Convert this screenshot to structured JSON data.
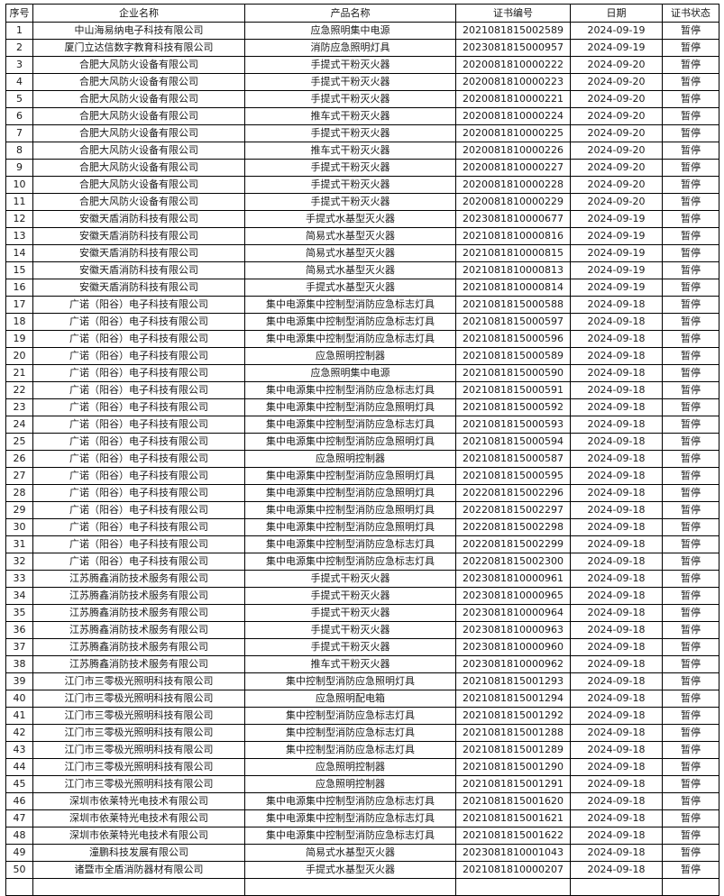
{
  "table": {
    "headers": [
      "序号",
      "企业名称",
      "产品名称",
      "证书编号",
      "日期",
      "证书状态"
    ],
    "rows": [
      [
        "1",
        "中山海易纳电子科技有限公司",
        "应急照明集中电源",
        "2021081815002589",
        "2024-09-19",
        "暂停"
      ],
      [
        "2",
        "厦门立达信数字教育科技有限公司",
        "消防应急照明灯具",
        "2023081815000957",
        "2024-09-19",
        "暂停"
      ],
      [
        "3",
        "合肥大风防火设备有限公司",
        "手提式干粉灭火器",
        "2020081810000222",
        "2024-09-20",
        "暂停"
      ],
      [
        "4",
        "合肥大风防火设备有限公司",
        "手提式干粉灭火器",
        "2020081810000223",
        "2024-09-20",
        "暂停"
      ],
      [
        "5",
        "合肥大风防火设备有限公司",
        "手提式干粉灭火器",
        "2020081810000221",
        "2024-09-20",
        "暂停"
      ],
      [
        "6",
        "合肥大风防火设备有限公司",
        "推车式干粉灭火器",
        "2020081810000224",
        "2024-09-20",
        "暂停"
      ],
      [
        "7",
        "合肥大风防火设备有限公司",
        "手提式干粉灭火器",
        "2020081810000225",
        "2024-09-20",
        "暂停"
      ],
      [
        "8",
        "合肥大风防火设备有限公司",
        "推车式干粉灭火器",
        "2020081810000226",
        "2024-09-20",
        "暂停"
      ],
      [
        "9",
        "合肥大风防火设备有限公司",
        "手提式干粉灭火器",
        "2020081810000227",
        "2024-09-20",
        "暂停"
      ],
      [
        "10",
        "合肥大风防火设备有限公司",
        "手提式干粉灭火器",
        "2020081810000228",
        "2024-09-20",
        "暂停"
      ],
      [
        "11",
        "合肥大风防火设备有限公司",
        "手提式干粉灭火器",
        "2020081810000229",
        "2024-09-20",
        "暂停"
      ],
      [
        "12",
        "安徽天盾消防科技有限公司",
        "手提式水基型灭火器",
        "2023081810000677",
        "2024-09-19",
        "暂停"
      ],
      [
        "13",
        "安徽天盾消防科技有限公司",
        "简易式水基型灭火器",
        "2021081810000816",
        "2024-09-19",
        "暂停"
      ],
      [
        "14",
        "安徽天盾消防科技有限公司",
        "简易式水基型灭火器",
        "2021081810000815",
        "2024-09-19",
        "暂停"
      ],
      [
        "15",
        "安徽天盾消防科技有限公司",
        "简易式水基型灭火器",
        "2021081810000813",
        "2024-09-19",
        "暂停"
      ],
      [
        "16",
        "安徽天盾消防科技有限公司",
        "手提式水基型灭火器",
        "2021081810000814",
        "2024-09-19",
        "暂停"
      ],
      [
        "17",
        "广诺（阳谷）电子科技有限公司",
        "集中电源集中控制型消防应急标志灯具",
        "2021081815000588",
        "2024-09-18",
        "暂停"
      ],
      [
        "18",
        "广诺（阳谷）电子科技有限公司",
        "集中电源集中控制型消防应急标志灯具",
        "2021081815000597",
        "2024-09-18",
        "暂停"
      ],
      [
        "19",
        "广诺（阳谷）电子科技有限公司",
        "集中电源集中控制型消防应急标志灯具",
        "2021081815000596",
        "2024-09-18",
        "暂停"
      ],
      [
        "20",
        "广诺（阳谷）电子科技有限公司",
        "应急照明控制器",
        "2021081815000589",
        "2024-09-18",
        "暂停"
      ],
      [
        "21",
        "广诺（阳谷）电子科技有限公司",
        "应急照明集中电源",
        "2021081815000590",
        "2024-09-18",
        "暂停"
      ],
      [
        "22",
        "广诺（阳谷）电子科技有限公司",
        "集中电源集中控制型消防应急标志灯具",
        "2021081815000591",
        "2024-09-18",
        "暂停"
      ],
      [
        "23",
        "广诺（阳谷）电子科技有限公司",
        "集中电源集中控制型消防应急照明灯具",
        "2021081815000592",
        "2024-09-18",
        "暂停"
      ],
      [
        "24",
        "广诺（阳谷）电子科技有限公司",
        "集中电源集中控制型消防应急标志灯具",
        "2021081815000593",
        "2024-09-18",
        "暂停"
      ],
      [
        "25",
        "广诺（阳谷）电子科技有限公司",
        "集中电源集中控制型消防应急照明灯具",
        "2021081815000594",
        "2024-09-18",
        "暂停"
      ],
      [
        "26",
        "广诺（阳谷）电子科技有限公司",
        "应急照明控制器",
        "2021081815000587",
        "2024-09-18",
        "暂停"
      ],
      [
        "27",
        "广诺（阳谷）电子科技有限公司",
        "集中电源集中控制型消防应急照明灯具",
        "2021081815000595",
        "2024-09-18",
        "暂停"
      ],
      [
        "28",
        "广诺（阳谷）电子科技有限公司",
        "集中电源集中控制型消防应急照明灯具",
        "2022081815002296",
        "2024-09-18",
        "暂停"
      ],
      [
        "29",
        "广诺（阳谷）电子科技有限公司",
        "集中电源集中控制型消防应急照明灯具",
        "2022081815002297",
        "2024-09-18",
        "暂停"
      ],
      [
        "30",
        "广诺（阳谷）电子科技有限公司",
        "集中电源集中控制型消防应急照明灯具",
        "2022081815002298",
        "2024-09-18",
        "暂停"
      ],
      [
        "31",
        "广诺（阳谷）电子科技有限公司",
        "集中电源集中控制型消防应急标志灯具",
        "2022081815002299",
        "2024-09-18",
        "暂停"
      ],
      [
        "32",
        "广诺（阳谷）电子科技有限公司",
        "集中电源集中控制型消防应急标志灯具",
        "2022081815002300",
        "2024-09-18",
        "暂停"
      ],
      [
        "33",
        "江苏腾鑫消防技术服务有限公司",
        "手提式干粉灭火器",
        "2023081810000961",
        "2024-09-18",
        "暂停"
      ],
      [
        "34",
        "江苏腾鑫消防技术服务有限公司",
        "手提式干粉灭火器",
        "2023081810000965",
        "2024-09-18",
        "暂停"
      ],
      [
        "35",
        "江苏腾鑫消防技术服务有限公司",
        "手提式干粉灭火器",
        "2023081810000964",
        "2024-09-18",
        "暂停"
      ],
      [
        "36",
        "江苏腾鑫消防技术服务有限公司",
        "手提式干粉灭火器",
        "2023081810000963",
        "2024-09-18",
        "暂停"
      ],
      [
        "37",
        "江苏腾鑫消防技术服务有限公司",
        "手提式干粉灭火器",
        "2023081810000960",
        "2024-09-18",
        "暂停"
      ],
      [
        "38",
        "江苏腾鑫消防技术服务有限公司",
        "推车式干粉灭火器",
        "2023081810000962",
        "2024-09-18",
        "暂停"
      ],
      [
        "39",
        "江门市三零极光照明科技有限公司",
        "集中控制型消防应急照明灯具",
        "2021081815001293",
        "2024-09-18",
        "暂停"
      ],
      [
        "40",
        "江门市三零极光照明科技有限公司",
        "应急照明配电箱",
        "2021081815001294",
        "2024-09-18",
        "暂停"
      ],
      [
        "41",
        "江门市三零极光照明科技有限公司",
        "集中控制型消防应急标志灯具",
        "2021081815001292",
        "2024-09-18",
        "暂停"
      ],
      [
        "42",
        "江门市三零极光照明科技有限公司",
        "集中控制型消防应急标志灯具",
        "2021081815001288",
        "2024-09-18",
        "暂停"
      ],
      [
        "43",
        "江门市三零极光照明科技有限公司",
        "集中控制型消防应急标志灯具",
        "2021081815001289",
        "2024-09-18",
        "暂停"
      ],
      [
        "44",
        "江门市三零极光照明科技有限公司",
        "应急照明控制器",
        "2021081815001290",
        "2024-09-18",
        "暂停"
      ],
      [
        "45",
        "江门市三零极光照明科技有限公司",
        "应急照明控制器",
        "2021081815001291",
        "2024-09-18",
        "暂停"
      ],
      [
        "46",
        "深圳市依莱特光电技术有限公司",
        "集中电源集中控制型消防应急标志灯具",
        "2021081815001620",
        "2024-09-18",
        "暂停"
      ],
      [
        "47",
        "深圳市依莱特光电技术有限公司",
        "集中电源集中控制型消防应急标志灯具",
        "2021081815001621",
        "2024-09-18",
        "暂停"
      ],
      [
        "48",
        "深圳市依莱特光电技术有限公司",
        "集中电源集中控制型消防应急标志灯具",
        "2021081815001622",
        "2024-09-18",
        "暂停"
      ],
      [
        "49",
        "潼鹏科技发展有限公司",
        "简易式水基型灭火器",
        "2023081810001043",
        "2024-09-18",
        "暂停"
      ],
      [
        "50",
        "诸暨市全盾消防器材有限公司",
        "手提式水基型灭火器",
        "2021081810000207",
        "2024-09-18",
        "暂停"
      ]
    ]
  }
}
